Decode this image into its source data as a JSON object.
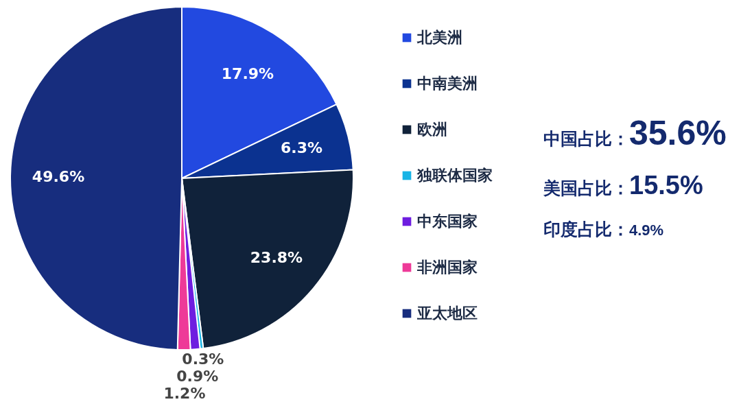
{
  "chart_data": {
    "type": "pie",
    "categories": [
      "北美洲",
      "中南美洲",
      "欧洲",
      "独联体国家",
      "中东国家",
      "非洲国家",
      "亚太地区"
    ],
    "values": [
      17.9,
      6.3,
      23.8,
      0.3,
      0.9,
      1.2,
      49.6
    ],
    "value_labels": [
      "17.9%",
      "6.3%",
      "23.8%",
      "0.3%",
      "0.9%",
      "1.2%",
      "49.6%"
    ],
    "colors": [
      "#2249e0",
      "#0b3290",
      "#10223a",
      "#18b4e6",
      "#6e1de0",
      "#ee3a98",
      "#172d7e"
    ],
    "legend": "right",
    "annotations": [
      "中国占比：35.6%",
      "美国占比：15.5%",
      "印度占比：4.9%"
    ]
  }
}
